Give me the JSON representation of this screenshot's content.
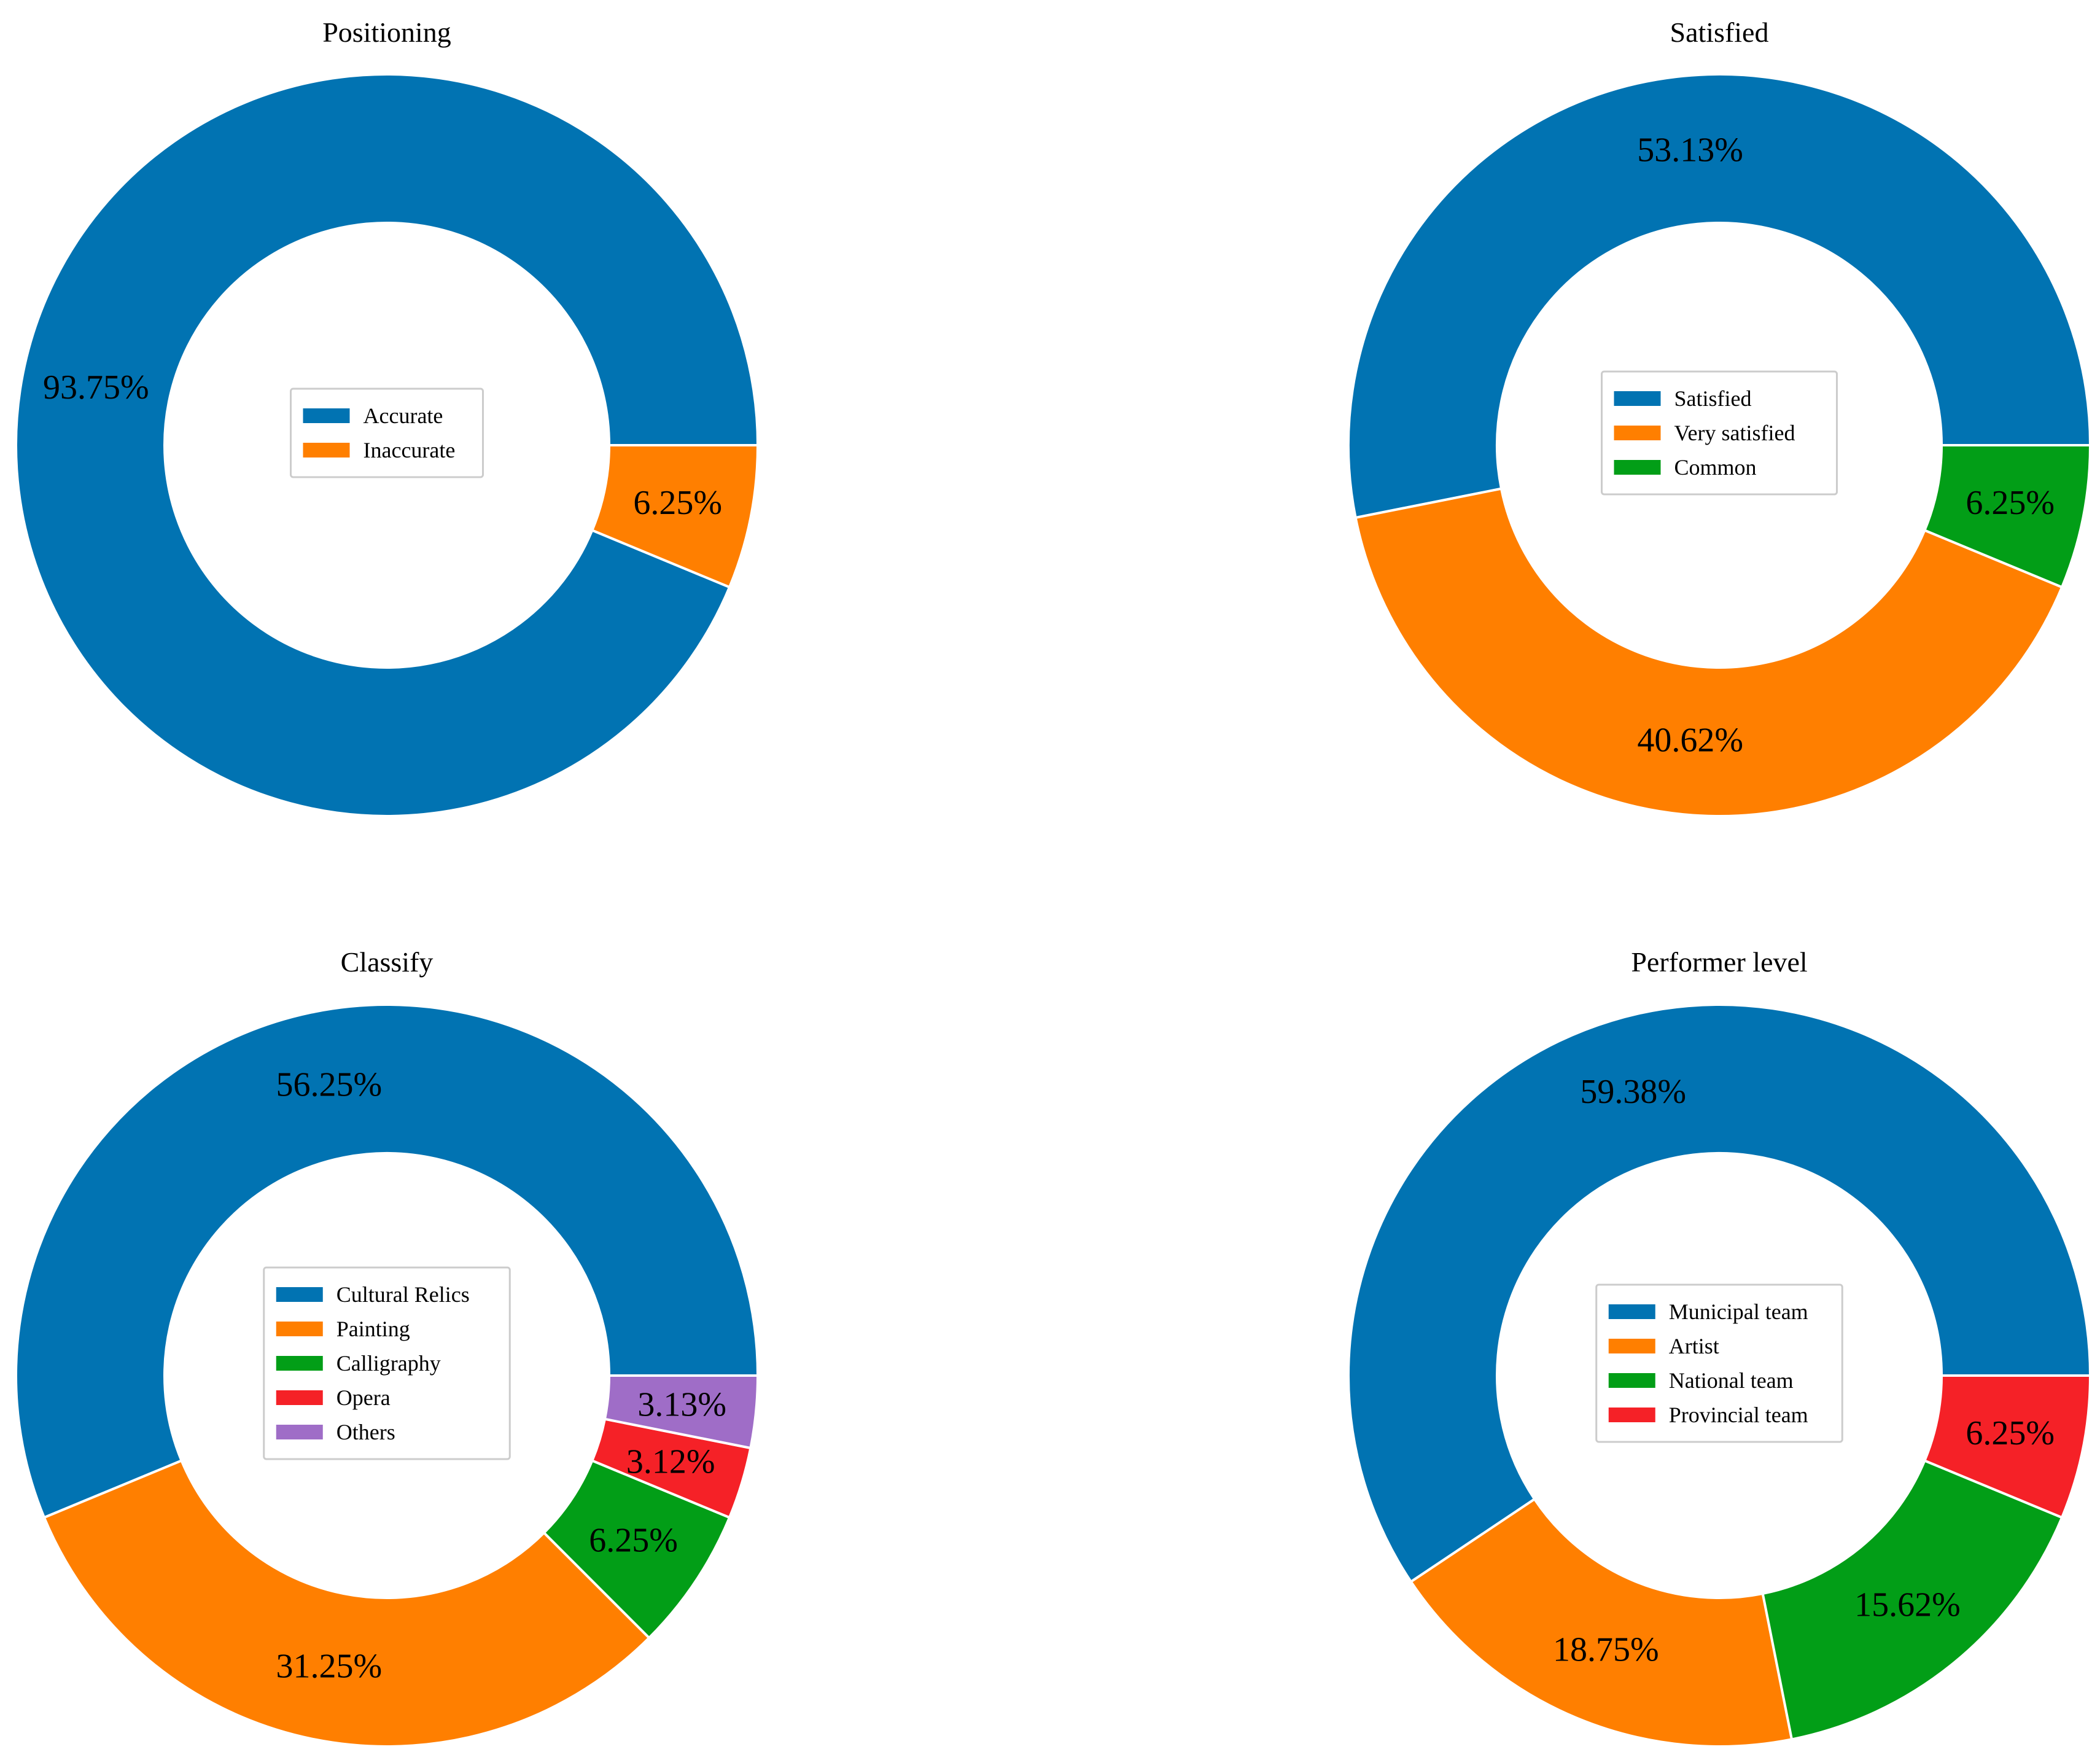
{
  "chart_data": [
    {
      "type": "pie",
      "title": "Positioning",
      "series": [
        {
          "name": "Accurate",
          "value": 93.75,
          "label": "93.75%",
          "color": "#0173b2"
        },
        {
          "name": "Inaccurate",
          "value": 6.25,
          "label": "6.25%",
          "color": "#ff7f00"
        }
      ],
      "legend": "center"
    },
    {
      "type": "pie",
      "title": "Satisfied",
      "series": [
        {
          "name": "Satisfied",
          "value": 53.13,
          "label": "53.13%",
          "color": "#0173b2"
        },
        {
          "name": "Very satisfied",
          "value": 40.62,
          "label": "40.62%",
          "color": "#ff7f00"
        },
        {
          "name": "Common",
          "value": 6.25,
          "label": "6.25%",
          "color": "#029e17"
        }
      ],
      "legend": "center"
    },
    {
      "type": "pie",
      "title": "Classify",
      "series": [
        {
          "name": "Cultural Relics",
          "value": 56.25,
          "label": "56.25%",
          "color": "#0173b2"
        },
        {
          "name": "Painting",
          "value": 31.25,
          "label": "31.25%",
          "color": "#ff7f00"
        },
        {
          "name": "Calligraphy",
          "value": 6.25,
          "label": "6.25%",
          "color": "#029e17"
        },
        {
          "name": "Opera",
          "value": 3.12,
          "label": "3.12%",
          "color": "#f52127"
        },
        {
          "name": "Others",
          "value": 3.13,
          "label": "3.13%",
          "color": "#9f6dc7"
        }
      ],
      "legend": "center"
    },
    {
      "type": "pie",
      "title": "Performer level",
      "series": [
        {
          "name": "Municipal team",
          "value": 59.38,
          "label": "59.38%",
          "color": "#0173b2"
        },
        {
          "name": "Artist",
          "value": 18.75,
          "label": "18.75%",
          "color": "#ff7f00"
        },
        {
          "name": "National team",
          "value": 15.62,
          "label": "15.62%",
          "color": "#029e17"
        },
        {
          "name": "Provincial team",
          "value": 6.25,
          "label": "6.25%",
          "color": "#f52127"
        }
      ],
      "legend": "center"
    }
  ]
}
